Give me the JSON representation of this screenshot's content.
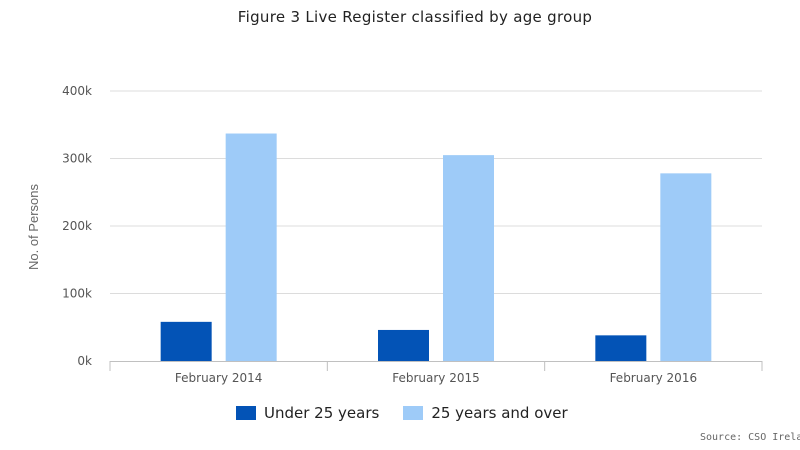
{
  "chart_data": {
    "type": "bar",
    "title": "Figure 3 Live Register classified by age group",
    "ylabel": "No. of Persons",
    "xlabel": "",
    "categories": [
      "February 2014",
      "February 2015",
      "February 2016"
    ],
    "series": [
      {
        "name": "Under 25 years",
        "values": [
          58000,
          46000,
          38000
        ],
        "color": "#0353b6"
      },
      {
        "name": "25 years and over",
        "values": [
          337000,
          305000,
          278000
        ],
        "color": "#9ecbf8"
      }
    ],
    "ylim": [
      0,
      400000
    ],
    "yticks": [
      0,
      100000,
      200000,
      300000,
      400000
    ],
    "ytick_labels": [
      "0k",
      "100k",
      "200k",
      "300k",
      "400k"
    ],
    "grid": true,
    "legend": "bottom",
    "source": "Source: CSO Irela"
  }
}
